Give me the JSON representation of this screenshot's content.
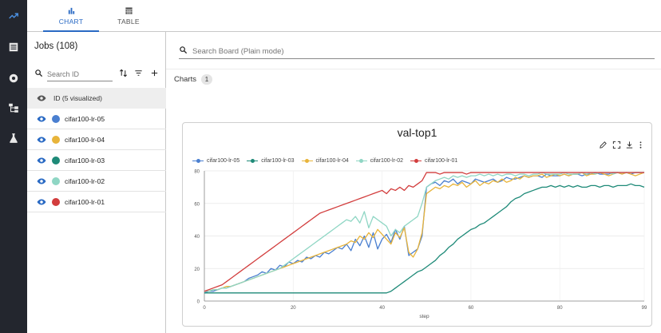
{
  "nav": {
    "rail_icons": [
      "trend-icon",
      "list-icon",
      "circle-icon",
      "hierarchy-icon",
      "flask-icon"
    ],
    "tabs": [
      {
        "label": "CHART",
        "icon": "bar-chart-icon",
        "active": true
      },
      {
        "label": "TABLE",
        "icon": "table-icon",
        "active": false
      }
    ]
  },
  "jobs": {
    "title": "Jobs (108)",
    "search_placeholder": "Search ID",
    "id_header": "ID (5 visualized)",
    "items": [
      {
        "name": "cifar100-lr-05",
        "color": "#4a7fd0"
      },
      {
        "name": "cifar100-lr-04",
        "color": "#e8b43a"
      },
      {
        "name": "cifar100-lr-03",
        "color": "#1e8a78"
      },
      {
        "name": "cifar100-lr-02",
        "color": "#8fd6c4"
      },
      {
        "name": "cifar100-lr-01",
        "color": "#d23d3d"
      }
    ]
  },
  "board": {
    "search_placeholder": "Search Board (Plain mode)",
    "charts_label": "Charts",
    "charts_count": "1"
  },
  "chart_data": {
    "type": "line",
    "title": "val-top1",
    "xlabel": "step",
    "ylabel": "",
    "xlim": [
      0,
      99
    ],
    "ylim": [
      0,
      80
    ],
    "x_ticks": [
      0,
      20,
      40,
      60,
      80,
      99
    ],
    "y_ticks": [
      0,
      20,
      40,
      60,
      80
    ],
    "grid": true,
    "legend": "top-left",
    "series": [
      {
        "name": "cifar100-lr-05",
        "color": "#4a7fd0",
        "values": [
          5,
          6,
          6,
          7,
          8,
          8,
          9,
          10,
          11,
          12,
          14,
          15,
          16,
          18,
          17,
          20,
          19,
          22,
          21,
          24,
          23,
          25,
          24,
          27,
          26,
          28,
          27,
          30,
          29,
          31,
          33,
          32,
          35,
          31,
          38,
          34,
          40,
          33,
          42,
          32,
          38,
          41,
          36,
          44,
          38,
          46,
          28,
          30,
          32,
          40,
          70,
          72,
          73,
          71,
          74,
          73,
          75,
          72,
          74,
          73,
          72,
          75,
          74,
          73,
          74,
          75,
          73,
          74,
          76,
          75,
          75,
          76,
          77,
          76,
          77,
          77,
          76,
          78,
          77,
          77,
          77,
          78,
          77,
          78,
          78,
          77,
          78,
          78,
          79,
          78,
          78,
          78,
          79,
          79,
          78,
          79,
          78,
          79,
          79,
          79
        ]
      },
      {
        "name": "cifar100-lr-04",
        "color": "#e8b43a",
        "values": [
          6,
          6,
          7,
          7,
          8,
          9,
          9,
          10,
          11,
          12,
          13,
          14,
          15,
          16,
          17,
          18,
          19,
          20,
          21,
          22,
          23,
          24,
          25,
          26,
          27,
          28,
          29,
          30,
          31,
          32,
          33,
          34,
          35,
          37,
          36,
          40,
          38,
          42,
          39,
          44,
          41,
          38,
          35,
          42,
          39,
          45,
          30,
          27,
          32,
          42,
          66,
          68,
          70,
          69,
          71,
          70,
          72,
          71,
          73,
          70,
          72,
          74,
          71,
          73,
          72,
          74,
          73,
          75,
          73,
          74,
          76,
          75,
          77,
          76,
          77,
          77,
          78,
          76,
          77,
          78,
          77,
          78,
          77,
          78,
          78,
          79,
          77,
          78,
          78,
          79,
          78,
          77,
          78,
          79,
          78,
          79,
          78,
          77,
          78,
          79
        ]
      },
      {
        "name": "cifar100-lr-03",
        "color": "#1e8a78",
        "values": [
          5,
          5,
          5,
          5,
          5,
          5,
          5,
          5,
          5,
          5,
          5,
          5,
          5,
          5,
          5,
          5,
          5,
          5,
          5,
          5,
          5,
          5,
          5,
          5,
          5,
          5,
          5,
          5,
          5,
          5,
          5,
          5,
          5,
          5,
          5,
          5,
          5,
          5,
          5,
          5,
          5,
          5,
          6,
          8,
          10,
          12,
          14,
          16,
          18,
          19,
          21,
          23,
          25,
          28,
          30,
          33,
          35,
          38,
          40,
          42,
          44,
          45,
          47,
          48,
          50,
          52,
          54,
          56,
          58,
          61,
          63,
          64,
          66,
          67,
          68,
          69,
          70,
          70,
          71,
          70,
          71,
          70,
          71,
          70,
          71,
          70,
          70,
          71,
          71,
          70,
          71,
          71,
          70,
          71,
          71,
          71,
          72,
          71,
          71,
          70
        ]
      },
      {
        "name": "cifar100-lr-02",
        "color": "#8fd6c4",
        "values": [
          6,
          6,
          7,
          7,
          8,
          8,
          9,
          10,
          11,
          12,
          13,
          14,
          15,
          16,
          17,
          18,
          19,
          20,
          22,
          24,
          26,
          28,
          30,
          32,
          34,
          36,
          38,
          40,
          42,
          44,
          46,
          48,
          50,
          49,
          52,
          48,
          55,
          45,
          52,
          50,
          48,
          46,
          40,
          44,
          42,
          46,
          48,
          50,
          52,
          60,
          70,
          72,
          74,
          75,
          76,
          75,
          77,
          76,
          77,
          76,
          77,
          77,
          78,
          77,
          78,
          77,
          78,
          77,
          78,
          78,
          77,
          78,
          78,
          77,
          78,
          78,
          79,
          78,
          78,
          78,
          78,
          79,
          78,
          78,
          78,
          79,
          78,
          79,
          78,
          79,
          79,
          79,
          78,
          79,
          79,
          79,
          79,
          79,
          79,
          79
        ]
      },
      {
        "name": "cifar100-lr-01",
        "color": "#d23d3d",
        "values": [
          6,
          7,
          8,
          9,
          10,
          12,
          14,
          16,
          18,
          20,
          22,
          24,
          26,
          28,
          30,
          32,
          34,
          36,
          38,
          40,
          42,
          44,
          46,
          48,
          50,
          52,
          54,
          55,
          56,
          57,
          58,
          59,
          60,
          61,
          62,
          63,
          64,
          65,
          66,
          67,
          68,
          66,
          69,
          68,
          70,
          68,
          71,
          70,
          72,
          74,
          79,
          79,
          79,
          78,
          79,
          79,
          79,
          79,
          79,
          78,
          79,
          79,
          79,
          79,
          79,
          79,
          79,
          79,
          79,
          79,
          79,
          79,
          79,
          79,
          79,
          79,
          79,
          79,
          79,
          79,
          79,
          79,
          79,
          79,
          79,
          79,
          79,
          79,
          79,
          79,
          79,
          79,
          79,
          79,
          79,
          79,
          79,
          79,
          79,
          79
        ]
      }
    ]
  }
}
